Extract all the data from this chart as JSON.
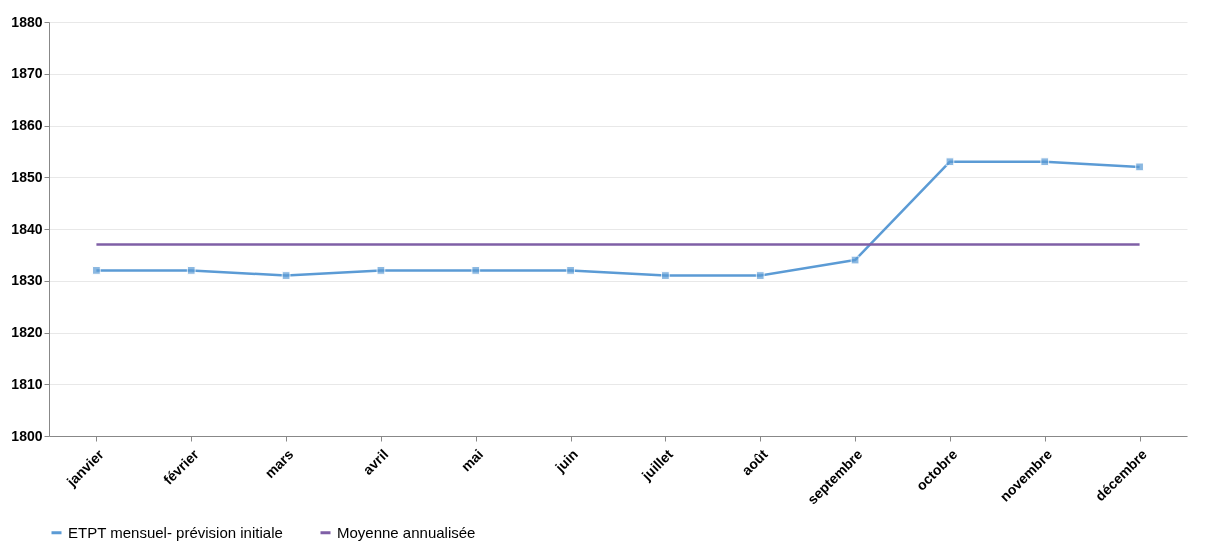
{
  "chart_data": {
    "type": "line",
    "categories": [
      "janvier",
      "février",
      "mars",
      "avril",
      "mai",
      "juin",
      "juillet",
      "août",
      "septembre",
      "octobre",
      "novembre",
      "décembre"
    ],
    "series": [
      {
        "name": "ETPT mensuel- prévision initiale",
        "color": "#5b9bd5",
        "marker": "square",
        "values": [
          1832,
          1832,
          1831,
          1832,
          1832,
          1832,
          1831,
          1831,
          1834,
          1853,
          1853,
          1852
        ]
      },
      {
        "name": "Moyenne annualisée",
        "color": "#7f5fa6",
        "marker": "none",
        "values": [
          1837,
          1837,
          1837,
          1837,
          1837,
          1837,
          1837,
          1837,
          1837,
          1837,
          1837,
          1837
        ]
      }
    ],
    "ylim": [
      1800,
      1880
    ],
    "yticks": [
      1800,
      1810,
      1820,
      1830,
      1840,
      1850,
      1860,
      1870,
      1880
    ],
    "grid": "y",
    "legend": "bottom"
  }
}
